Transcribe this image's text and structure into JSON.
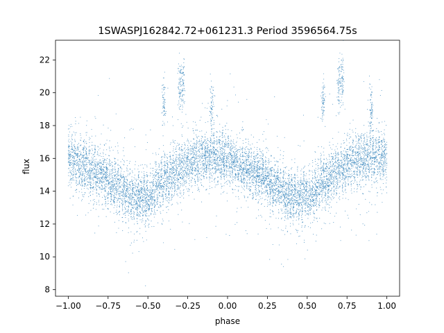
{
  "chart_data": {
    "type": "scatter",
    "title": "1SWASPJ162842.72+061231.3 Period 3596564.75s",
    "xlabel": "phase",
    "ylabel": "flux",
    "xlim": [
      -1.08,
      1.08
    ],
    "ylim": [
      7.6,
      23.2
    ],
    "xticks": [
      -1.0,
      -0.75,
      -0.5,
      -0.25,
      0.0,
      0.25,
      0.5,
      0.75,
      1.0
    ],
    "xtick_labels": [
      "−1.00",
      "−0.75",
      "−0.50",
      "−0.25",
      "0.00",
      "0.25",
      "0.50",
      "0.75",
      "1.00"
    ],
    "yticks": [
      8,
      10,
      12,
      14,
      16,
      18,
      20,
      22
    ],
    "ytick_labels": [
      "8",
      "10",
      "12",
      "14",
      "16",
      "18",
      "20",
      "22"
    ],
    "grid": false,
    "point_color": "#1f77b4",
    "trend_phase": [
      0.0,
      0.1,
      0.2,
      0.3,
      0.4,
      0.5,
      0.6,
      0.7,
      0.8,
      0.9
    ],
    "trend_flux": [
      16.0,
      15.4,
      15.0,
      14.3,
      13.6,
      13.7,
      14.6,
      15.3,
      15.9,
      16.1
    ],
    "flare_phase": [
      -0.3,
      -0.28,
      -0.1,
      0.7,
      0.72,
      0.9,
      0.6,
      -0.4
    ],
    "flare_flux": [
      20.5,
      20.6,
      19.0,
      20.5,
      20.6,
      19.0,
      19.5,
      19.3
    ]
  }
}
